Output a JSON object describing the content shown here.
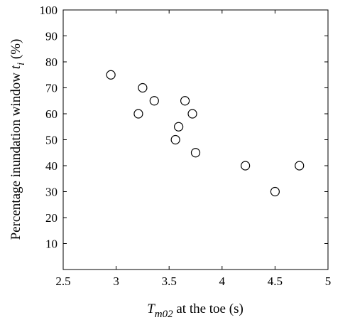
{
  "chart_data": {
    "type": "scatter",
    "title": "",
    "xlabel": {
      "main": "T",
      "subscript": "m02",
      "rest": " at the toe (s)"
    },
    "ylabel": {
      "main": "Percentage inundation window ",
      "italic": "t",
      "subscript": "i",
      "rest": " (%)"
    },
    "xlim": [
      2.5,
      5
    ],
    "ylim": [
      0,
      100
    ],
    "xticks": [
      "2.5",
      "3",
      "3.5",
      "4",
      "4.5",
      "5"
    ],
    "yticks": [
      "10",
      "20",
      "30",
      "40",
      "50",
      "60",
      "70",
      "80",
      "90",
      "100"
    ],
    "grid": false,
    "marker": "open-circle",
    "points": [
      {
        "x": 2.95,
        "y": 75
      },
      {
        "x": 3.21,
        "y": 60
      },
      {
        "x": 3.25,
        "y": 70
      },
      {
        "x": 3.36,
        "y": 65
      },
      {
        "x": 3.56,
        "y": 50
      },
      {
        "x": 3.59,
        "y": 55
      },
      {
        "x": 3.65,
        "y": 65
      },
      {
        "x": 3.72,
        "y": 60
      },
      {
        "x": 3.75,
        "y": 45
      },
      {
        "x": 4.22,
        "y": 40
      },
      {
        "x": 4.5,
        "y": 30
      },
      {
        "x": 4.73,
        "y": 40
      }
    ]
  }
}
